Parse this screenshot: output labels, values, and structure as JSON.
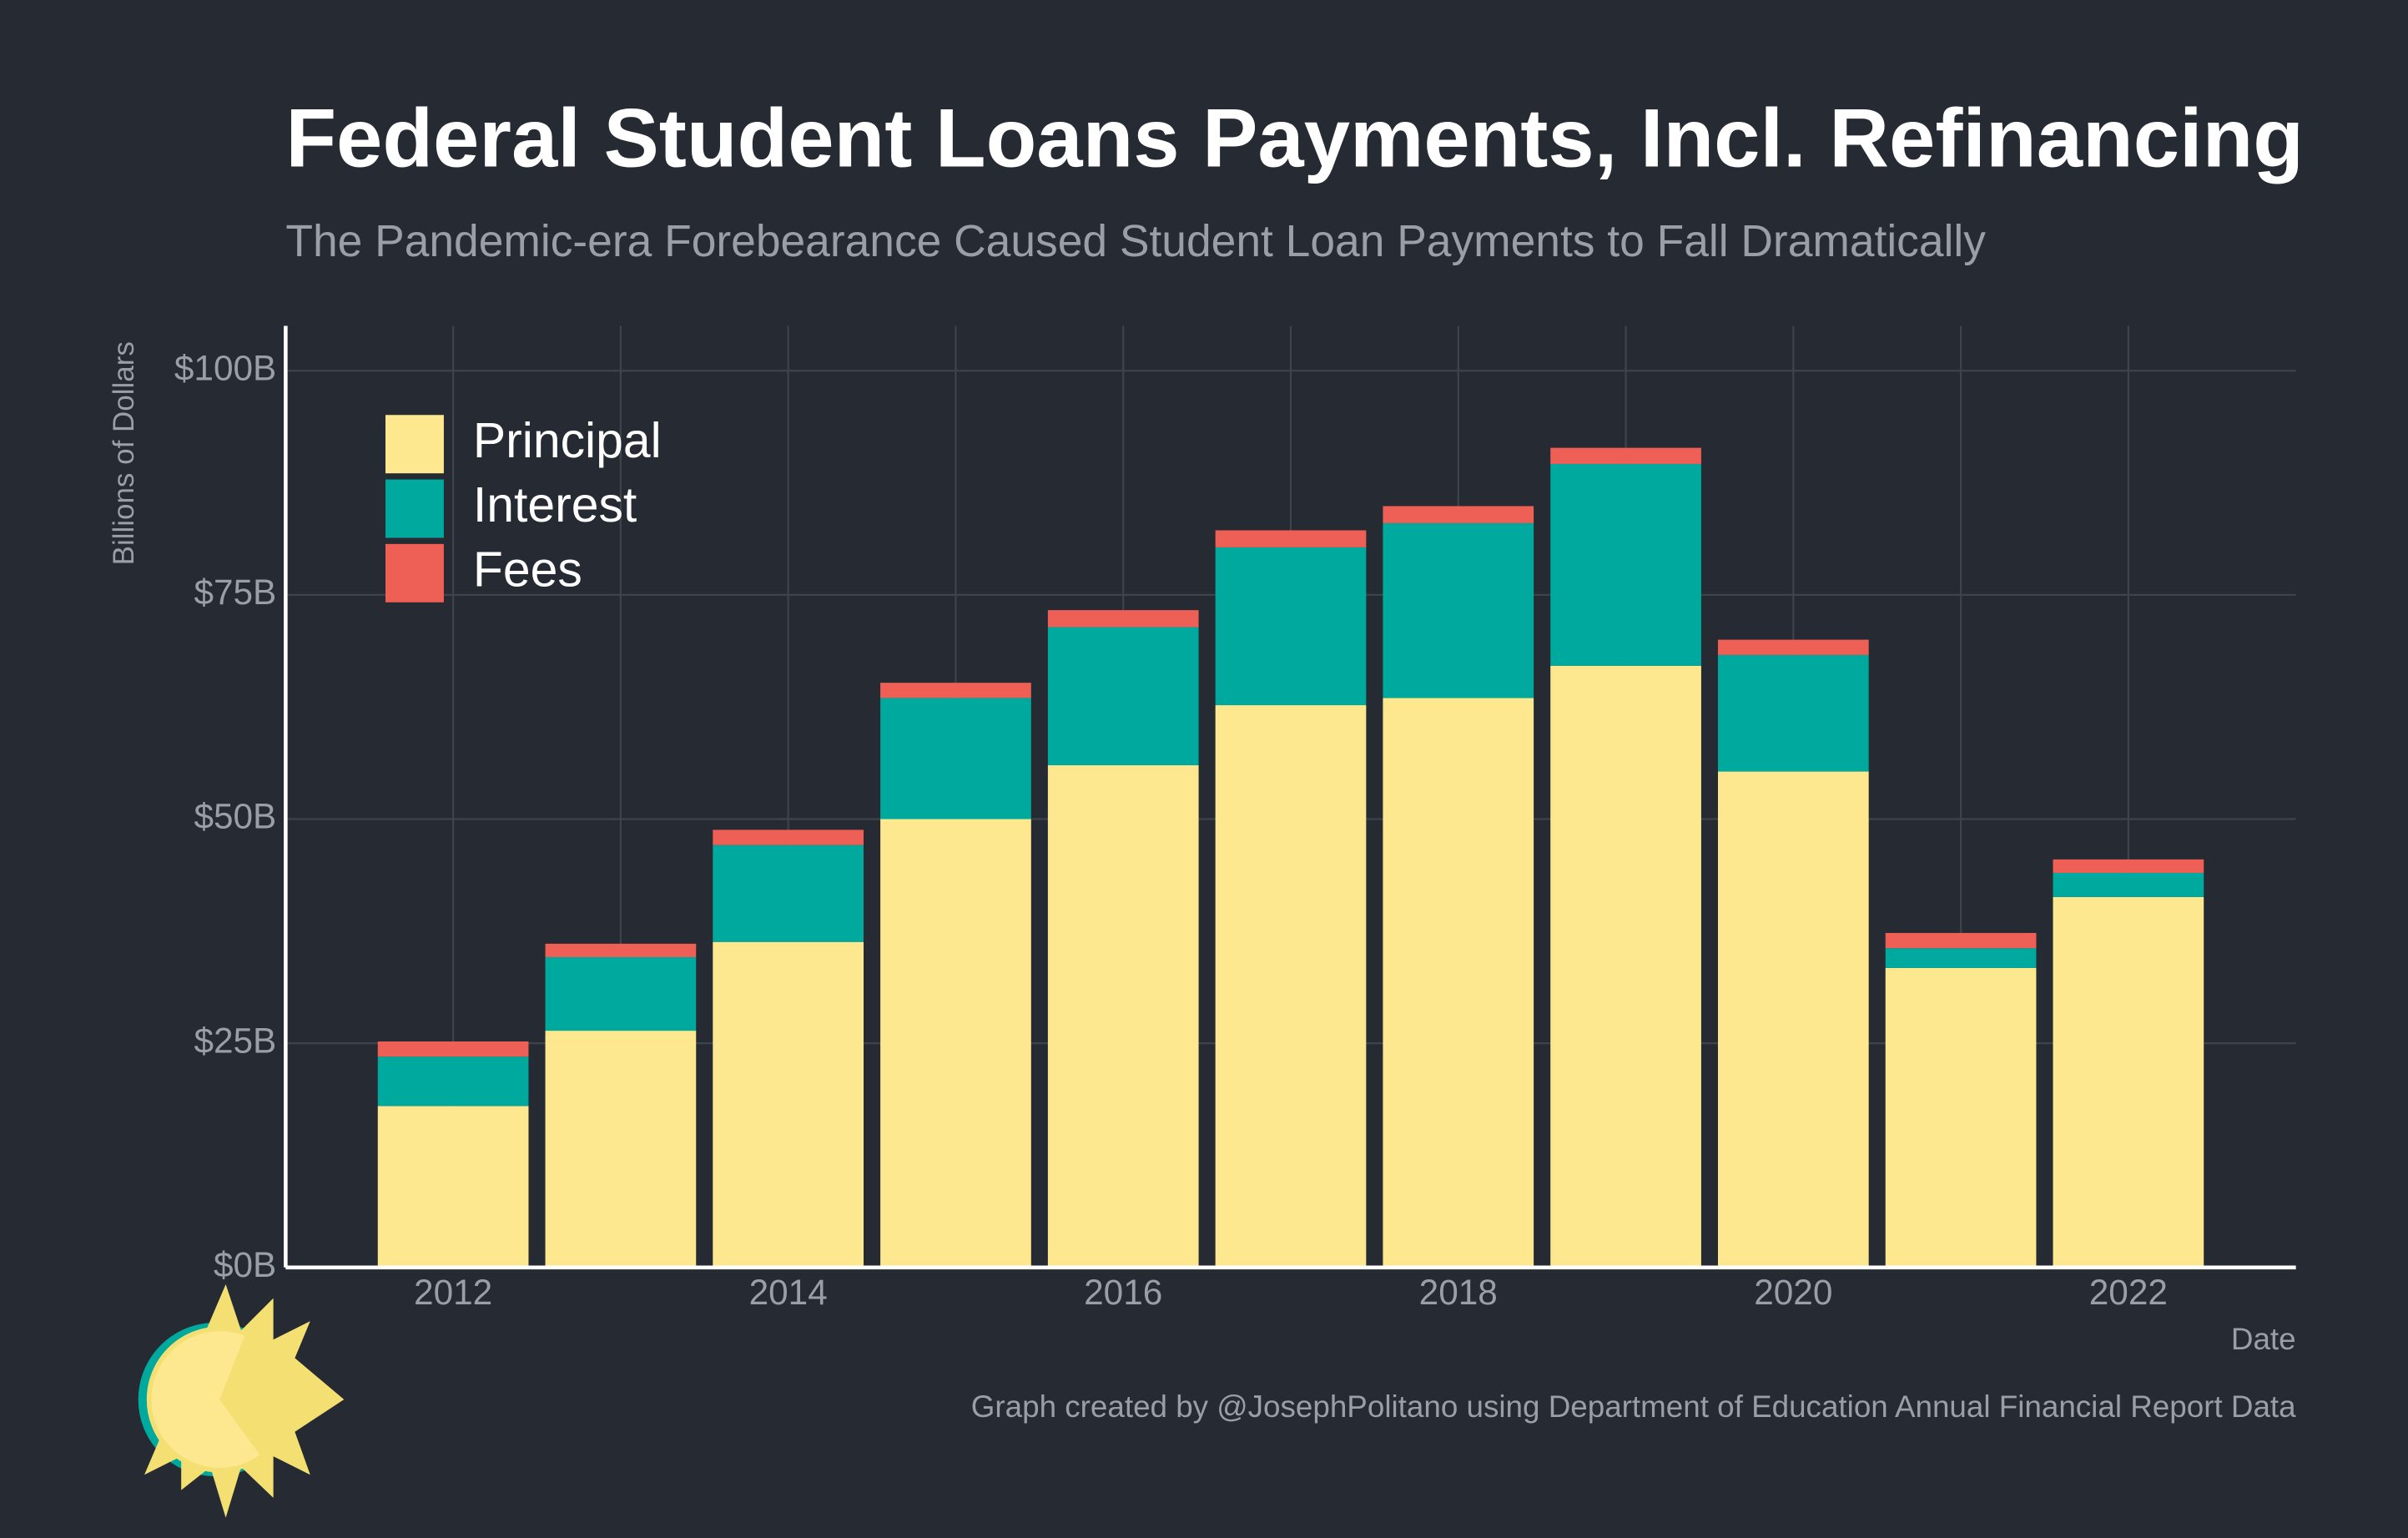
{
  "chart_data": {
    "type": "stacked_bar",
    "title": "Federal Student Loans Payments, Incl. Refinancing",
    "subtitle": "The Pandemic-era Forebearance Caused Student Loan Payments to Fall Dramatically",
    "y_label": "Billions of Dollars",
    "x_label": "Date",
    "caption": "Graph created by @JosephPolitano using Department of Education Annual Financial Report Data",
    "x": [
      2012,
      2013,
      2014,
      2015,
      2016,
      2017,
      2018,
      2019,
      2020,
      2021,
      2022
    ],
    "series": [
      {
        "name": "Principal",
        "color": "#fde78f",
        "values": [
          18.0,
          26.4,
          36.3,
          50.0,
          56.0,
          62.7,
          63.5,
          67.1,
          55.3,
          33.4,
          41.3
        ]
      },
      {
        "name": "Interest",
        "color": "#00a99d",
        "values": [
          5.5,
          8.2,
          10.8,
          13.5,
          15.4,
          17.6,
          19.5,
          22.5,
          13.0,
          2.2,
          2.7
        ]
      },
      {
        "name": "Fees",
        "color": "#ee6055",
        "values": [
          1.7,
          1.5,
          1.7,
          1.7,
          1.9,
          1.9,
          1.9,
          1.8,
          1.7,
          1.7,
          1.5
        ]
      }
    ],
    "xlim": [
      2011,
      2023
    ],
    "xticks": [
      2012,
      2014,
      2016,
      2018,
      2020,
      2022
    ],
    "ylim": [
      0,
      105
    ],
    "yticks": [
      {
        "value": 0,
        "label": "$0B"
      },
      {
        "value": 25,
        "label": "$25B"
      },
      {
        "value": 50,
        "label": "$50B"
      },
      {
        "value": 75,
        "label": "$75B"
      },
      {
        "value": 100,
        "label": "$100B"
      }
    ],
    "grid": true,
    "legend": "top-left"
  }
}
